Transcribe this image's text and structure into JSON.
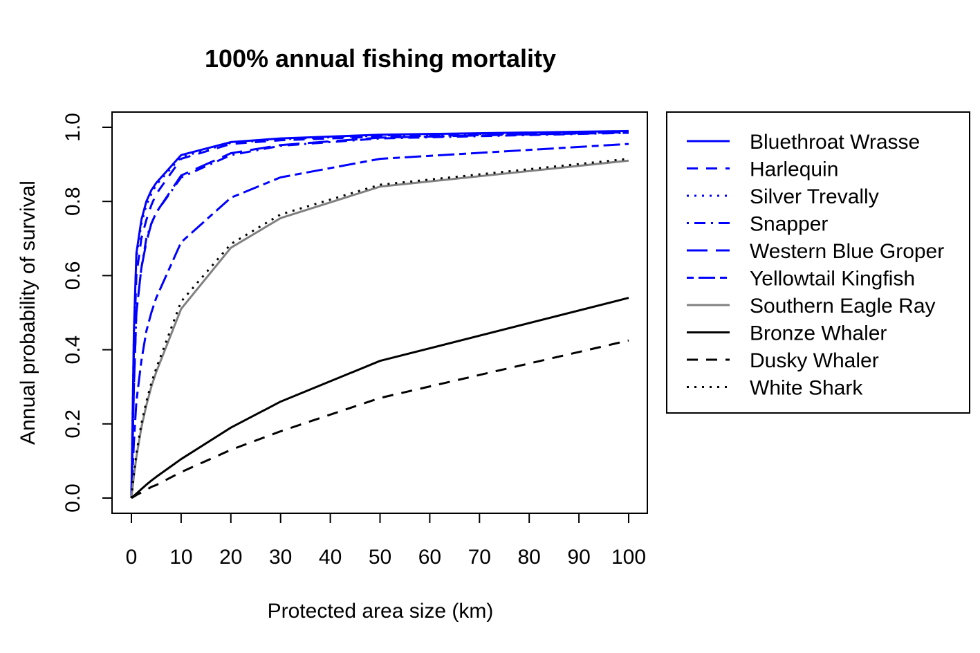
{
  "chart_data": {
    "type": "line",
    "title": "100% annual fishing mortality",
    "xlabel": "Protected area size (km)",
    "ylabel": "Annual probability of survival",
    "xlim": [
      0,
      100
    ],
    "ylim": [
      0,
      1
    ],
    "x_ticks": [
      "0",
      "10",
      "20",
      "30",
      "40",
      "50",
      "60",
      "70",
      "80",
      "90",
      "100"
    ],
    "y_ticks": [
      "0.0",
      "0.2",
      "0.4",
      "0.6",
      "0.8",
      "1.0"
    ],
    "grid": false,
    "legend_position": "outside-right",
    "x": [
      0,
      0.5,
      1,
      2,
      3,
      4,
      5,
      10,
      20,
      30,
      50,
      100
    ],
    "series": [
      {
        "name": "Bluethroat Wrasse",
        "color": "#0000ff",
        "dash": "solid",
        "values": [
          0,
          0.45,
          0.66,
          0.75,
          0.8,
          0.83,
          0.85,
          0.925,
          0.96,
          0.97,
          0.98,
          0.99
        ]
      },
      {
        "name": "Harlequin",
        "color": "#0000ff",
        "dash": "dashed",
        "values": [
          0,
          0.4,
          0.6,
          0.7,
          0.75,
          0.79,
          0.82,
          0.915,
          0.955,
          0.965,
          0.975,
          0.985
        ]
      },
      {
        "name": "Silver Trevally",
        "color": "#0000ff",
        "dash": "dotted",
        "values": [
          0,
          0.44,
          0.65,
          0.74,
          0.79,
          0.82,
          0.845,
          0.92,
          0.958,
          0.968,
          0.978,
          0.988
        ]
      },
      {
        "name": "Snapper",
        "color": "#0000ff",
        "dash": "dotdash",
        "values": [
          0,
          0.3,
          0.5,
          0.62,
          0.7,
          0.74,
          0.77,
          0.865,
          0.925,
          0.95,
          0.97,
          0.985
        ]
      },
      {
        "name": "Western Blue Groper",
        "color": "#0000ff",
        "dash": "longdash",
        "values": [
          0,
          0.3,
          0.5,
          0.62,
          0.69,
          0.74,
          0.77,
          0.87,
          0.93,
          0.952,
          0.972,
          0.987
        ]
      },
      {
        "name": "Yellowtail Kingfish",
        "color": "#0000ff",
        "dash": "twodash",
        "values": [
          0,
          0.15,
          0.26,
          0.37,
          0.45,
          0.5,
          0.54,
          0.69,
          0.81,
          0.865,
          0.915,
          0.955
        ]
      },
      {
        "name": "Southern Eagle Ray",
        "color": "#808080",
        "dash": "solid",
        "values": [
          0,
          0.06,
          0.11,
          0.19,
          0.25,
          0.3,
          0.34,
          0.51,
          0.675,
          0.755,
          0.84,
          0.91
        ]
      },
      {
        "name": "Bronze Whaler",
        "color": "#000000",
        "dash": "solid",
        "values": [
          0,
          0.006,
          0.012,
          0.024,
          0.036,
          0.047,
          0.057,
          0.105,
          0.19,
          0.26,
          0.37,
          0.54
        ]
      },
      {
        "name": "Dusky Whaler",
        "color": "#000000",
        "dash": "dashed",
        "values": [
          0,
          0.004,
          0.008,
          0.015,
          0.022,
          0.03,
          0.035,
          0.07,
          0.13,
          0.18,
          0.27,
          0.425
        ]
      },
      {
        "name": "White Shark",
        "color": "#000000",
        "dash": "dotted",
        "values": [
          0,
          0.065,
          0.12,
          0.2,
          0.26,
          0.31,
          0.35,
          0.53,
          0.685,
          0.765,
          0.845,
          0.915
        ]
      }
    ]
  }
}
